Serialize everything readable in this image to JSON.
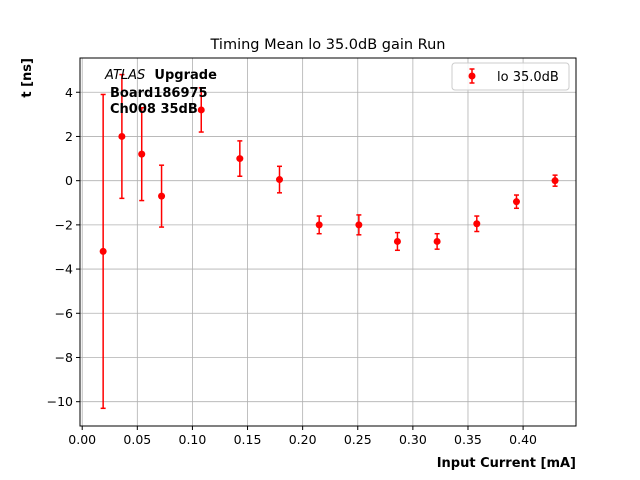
{
  "chart_data": {
    "type": "scatter",
    "title": "Timing Mean lo 35.0dB gain Run",
    "xlabel": "Input Current [mA]",
    "ylabel": "t [ns]",
    "xlim": [
      -0.002,
      0.448
    ],
    "ylim": [
      -11.1,
      5.55
    ],
    "xticks": [
      0.0,
      0.05,
      0.1,
      0.15,
      0.2,
      0.25,
      0.3,
      0.35,
      0.4
    ],
    "xtick_labels": [
      "0.00",
      "0.05",
      "0.10",
      "0.15",
      "0.20",
      "0.25",
      "0.30",
      "0.35",
      "0.40"
    ],
    "yticks": [
      -10,
      -8,
      -6,
      -4,
      -2,
      0,
      2,
      4
    ],
    "ytick_labels": [
      "−10",
      "−8",
      "−6",
      "−4",
      "−2",
      "0",
      "2",
      "4"
    ],
    "grid": true,
    "legend": {
      "position": "top-right"
    },
    "annotation": {
      "italic": "ATLAS",
      "bold": "Upgrade",
      "line2": "Board186975",
      "line3": "Ch008 35dB"
    },
    "series": [
      {
        "name": "lo 35.0dB",
        "color": "#ff0000",
        "x": [
          0.019,
          0.036,
          0.054,
          0.072,
          0.108,
          0.143,
          0.179,
          0.215,
          0.251,
          0.286,
          0.322,
          0.358,
          0.394,
          0.429
        ],
        "y": [
          -3.2,
          2.0,
          1.2,
          -0.7,
          3.2,
          1.0,
          0.05,
          -2.0,
          -2.0,
          -2.75,
          -2.75,
          -1.95,
          -0.95,
          0.0
        ],
        "yerr": [
          7.1,
          2.8,
          2.1,
          1.4,
          1.0,
          0.8,
          0.6,
          0.4,
          0.45,
          0.4,
          0.35,
          0.35,
          0.3,
          0.25
        ]
      }
    ]
  }
}
